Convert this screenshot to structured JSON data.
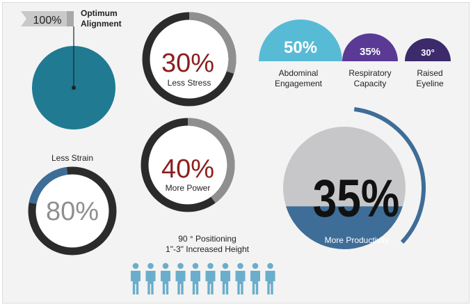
{
  "colors": {
    "teal": "#1f7a92",
    "dark_teal": "#0e4f61",
    "light_blue": "#58bbd6",
    "purple": "#5b3a95",
    "navy": "#3c2a6b",
    "steel_blue": "#3e6d97",
    "dark_red": "#8b1e1f",
    "ring_dark": "#2b2b2b",
    "ring_gray": "#8f8f8f",
    "big_gray": "#c7c7c9",
    "person": "#6aaecb"
  },
  "alignment": {
    "flag_value": "100%",
    "label_line1": "Optimum",
    "label_line2": "Alignment",
    "fill_fraction": 1.0
  },
  "stress": {
    "value": "30%",
    "label": "Less Stress",
    "fraction": 0.3
  },
  "power": {
    "value": "40%",
    "label": "More Power",
    "fraction": 0.4
  },
  "strain": {
    "title": "Less Strain",
    "value": "80%",
    "fraction": 0.2
  },
  "semicircles": [
    {
      "value": "50%",
      "label_line1": "Abdominal",
      "label_line2": "Engagement",
      "icon": "semicircle-light-blue"
    },
    {
      "value": "35%",
      "label_line1": "Respiratory",
      "label_line2": "Capacity",
      "icon": "semicircle-purple"
    },
    {
      "value": "30°",
      "label_line1": "Raised",
      "label_line2": "Eyeline",
      "icon": "semicircle-navy"
    }
  ],
  "positioning": {
    "line1": "90 ° Positioning",
    "line2": "1\"-3\" Increased Height",
    "people_count": 10,
    "icon": "person-icon"
  },
  "productivity": {
    "value": "35%",
    "label": "More Productivity",
    "fill_fraction": 0.35,
    "arc_fraction": 0.35
  }
}
